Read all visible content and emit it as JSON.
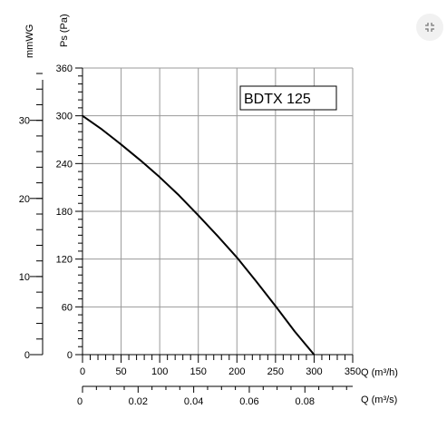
{
  "ui": {
    "minimize_icon": "minimize-icon"
  },
  "chart_data": {
    "type": "line",
    "model_label": "BDTX 125",
    "y_axes": [
      {
        "label": "Ps (Pa)",
        "range": [
          0,
          360
        ],
        "ticks": [
          0,
          60,
          120,
          180,
          240,
          300,
          360
        ]
      },
      {
        "label": "mmWG",
        "range": [
          0,
          36.7
        ],
        "ticks": [
          0,
          10,
          20,
          30
        ]
      }
    ],
    "x_axes": [
      {
        "label": "Q (m³/h)",
        "range": [
          0,
          350
        ],
        "ticks": [
          0,
          50,
          100,
          150,
          200,
          250,
          300,
          350
        ]
      },
      {
        "label": "Q (m³/s)",
        "range": [
          0,
          0.0972
        ],
        "ticks": [
          "0",
          "0.02",
          "0.04",
          "0.06",
          "0.08"
        ]
      }
    ],
    "series": [
      {
        "x": [
          0,
          25,
          50,
          75,
          100,
          125,
          150,
          175,
          200,
          225,
          250,
          275,
          300
        ],
        "y": [
          300,
          283,
          264,
          244,
          223,
          200,
          175,
          149,
          122,
          92,
          61,
          29,
          0
        ]
      }
    ],
    "grid": true,
    "legend": "none"
  },
  "colors": {
    "line": "#000000",
    "grid": "#9a9a9a",
    "button_bg": "#f1f1f1",
    "button_icon": "#777777"
  }
}
